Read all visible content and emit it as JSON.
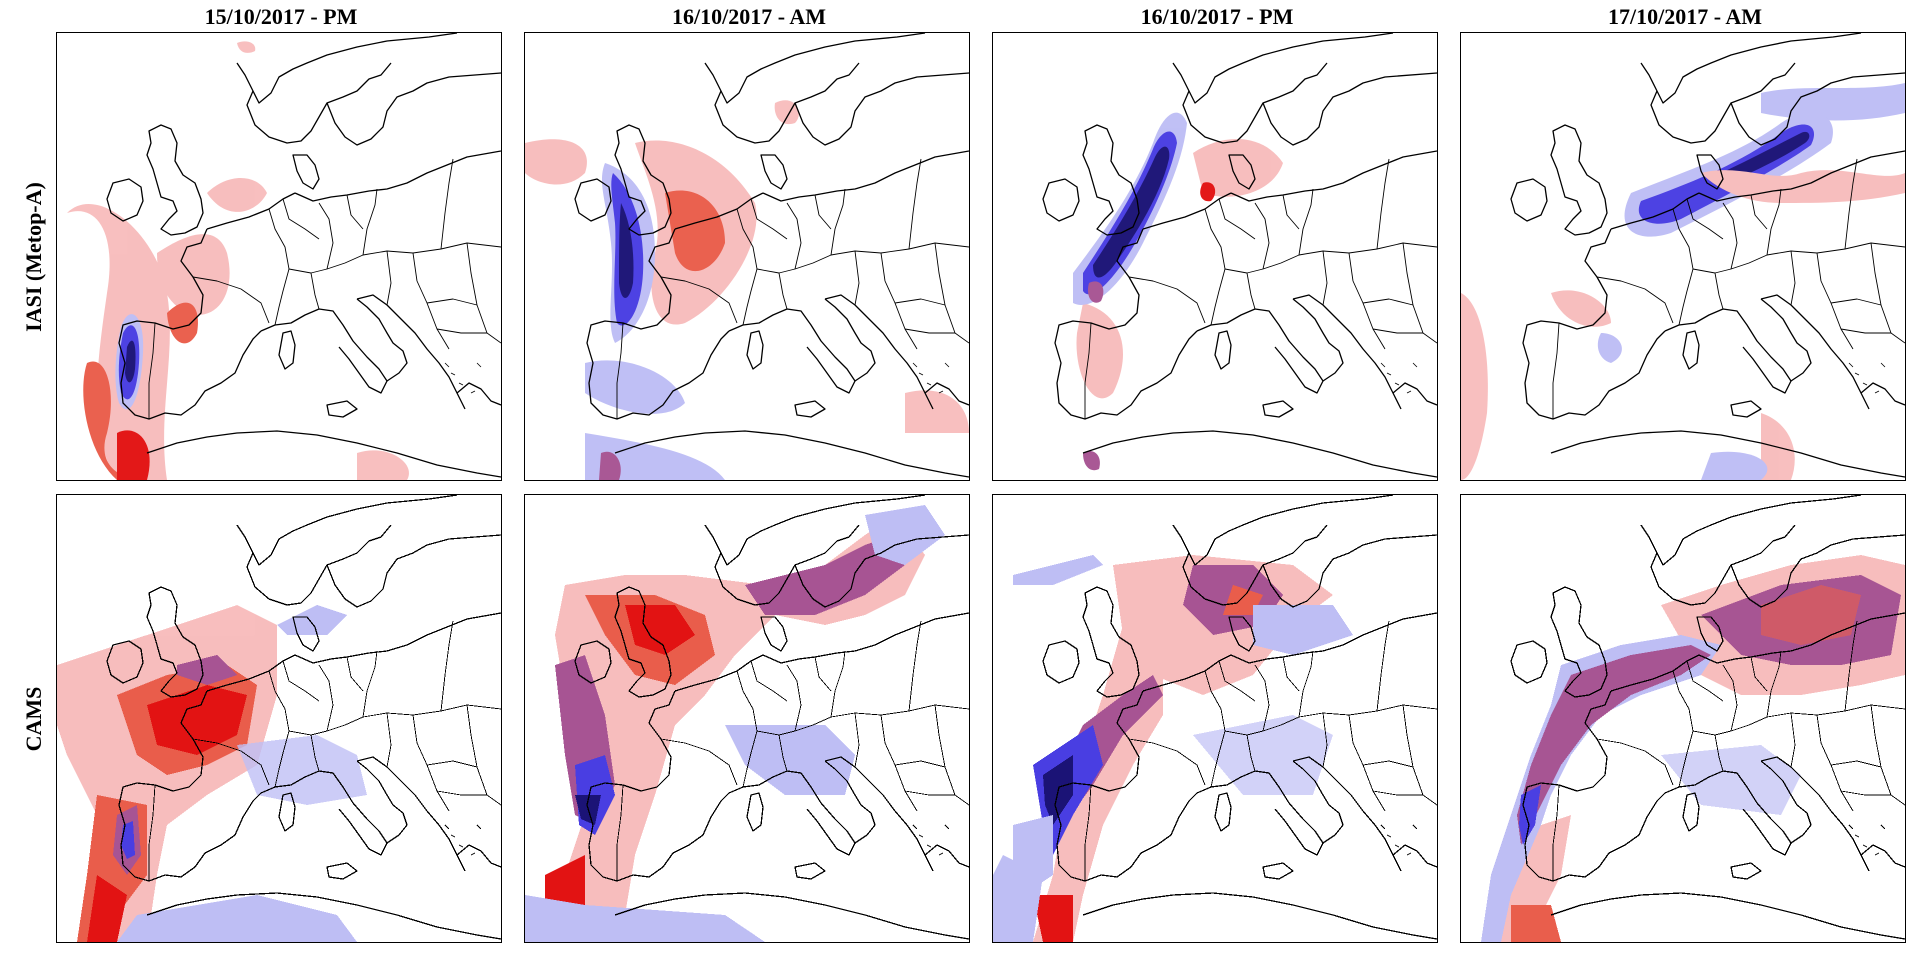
{
  "figure": {
    "columns": [
      {
        "label": "15/10/2017 - PM"
      },
      {
        "label": "16/10/2017 - AM"
      },
      {
        "label": "16/10/2017 - PM"
      },
      {
        "label": "17/10/2017 - AM"
      }
    ],
    "rows": [
      {
        "label": "IASI (Metop-A)"
      },
      {
        "label": "CAMS"
      }
    ]
  },
  "colors": {
    "positive_light": "#f7b8b8",
    "positive": "#e8503c",
    "positive_strong": "#e00000",
    "negative_light": "#b9b9f4",
    "negative": "#3a2ee0",
    "negative_strong": "#08006b",
    "overlap": "#a0468a",
    "coastline": "#000000"
  }
}
